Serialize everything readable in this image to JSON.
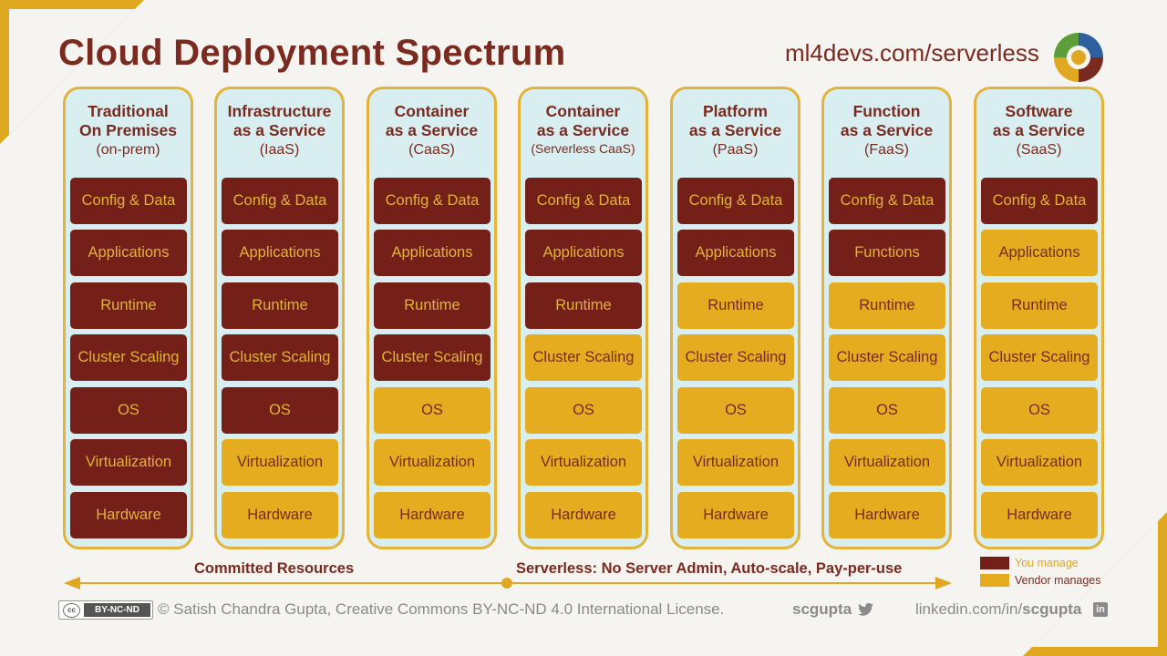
{
  "title": "Cloud Deployment Spectrum",
  "site": "ml4devs.com/serverless",
  "colors": {
    "you_manage": "#741f18",
    "vendor_manages": "#e4ac1e",
    "column_bg": "#d9eef0",
    "column_border": "#e4b43a",
    "accent": "#7a2a1f"
  },
  "columns": [
    {
      "line1": "Traditional",
      "line2": "On Premises",
      "line3": "(on-prem)",
      "cells": [
        {
          "label": "Config & Data",
          "owner": "you"
        },
        {
          "label": "Applications",
          "owner": "you"
        },
        {
          "label": "Runtime",
          "owner": "you"
        },
        {
          "label": "Cluster Scaling",
          "owner": "you"
        },
        {
          "label": "OS",
          "owner": "you"
        },
        {
          "label": "Virtualization",
          "owner": "you"
        },
        {
          "label": "Hardware",
          "owner": "you"
        }
      ]
    },
    {
      "line1": "Infrastructure",
      "line2": "as a Service",
      "line3": "(IaaS)",
      "cells": [
        {
          "label": "Config & Data",
          "owner": "you"
        },
        {
          "label": "Applications",
          "owner": "you"
        },
        {
          "label": "Runtime",
          "owner": "you"
        },
        {
          "label": "Cluster Scaling",
          "owner": "you"
        },
        {
          "label": "OS",
          "owner": "you"
        },
        {
          "label": "Virtualization",
          "owner": "vendor"
        },
        {
          "label": "Hardware",
          "owner": "vendor"
        }
      ]
    },
    {
      "line1": "Container",
      "line2": "as a Service",
      "line3": "(CaaS)",
      "cells": [
        {
          "label": "Config & Data",
          "owner": "you"
        },
        {
          "label": "Applications",
          "owner": "you"
        },
        {
          "label": "Runtime",
          "owner": "you"
        },
        {
          "label": "Cluster Scaling",
          "owner": "you"
        },
        {
          "label": "OS",
          "owner": "vendor"
        },
        {
          "label": "Virtualization",
          "owner": "vendor"
        },
        {
          "label": "Hardware",
          "owner": "vendor"
        }
      ]
    },
    {
      "line1": "Container",
      "line2": "as a Service",
      "line3": "(Serverless CaaS)",
      "cells": [
        {
          "label": "Config & Data",
          "owner": "you"
        },
        {
          "label": "Applications",
          "owner": "you"
        },
        {
          "label": "Runtime",
          "owner": "you"
        },
        {
          "label": "Cluster Scaling",
          "owner": "vendor"
        },
        {
          "label": "OS",
          "owner": "vendor"
        },
        {
          "label": "Virtualization",
          "owner": "vendor"
        },
        {
          "label": "Hardware",
          "owner": "vendor"
        }
      ]
    },
    {
      "line1": "Platform",
      "line2": "as a Service",
      "line3": "(PaaS)",
      "cells": [
        {
          "label": "Config & Data",
          "owner": "you"
        },
        {
          "label": "Applications",
          "owner": "you"
        },
        {
          "label": "Runtime",
          "owner": "vendor"
        },
        {
          "label": "Cluster Scaling",
          "owner": "vendor"
        },
        {
          "label": "OS",
          "owner": "vendor"
        },
        {
          "label": "Virtualization",
          "owner": "vendor"
        },
        {
          "label": "Hardware",
          "owner": "vendor"
        }
      ]
    },
    {
      "line1": "Function",
      "line2": "as a Service",
      "line3": "(FaaS)",
      "cells": [
        {
          "label": "Config & Data",
          "owner": "you"
        },
        {
          "label": "Functions",
          "owner": "you"
        },
        {
          "label": "Runtime",
          "owner": "vendor"
        },
        {
          "label": "Cluster Scaling",
          "owner": "vendor"
        },
        {
          "label": "OS",
          "owner": "vendor"
        },
        {
          "label": "Virtualization",
          "owner": "vendor"
        },
        {
          "label": "Hardware",
          "owner": "vendor"
        }
      ]
    },
    {
      "line1": "Software",
      "line2": "as a Service",
      "line3": "(SaaS)",
      "cells": [
        {
          "label": "Config & Data",
          "owner": "you"
        },
        {
          "label": "Applications",
          "owner": "vendor"
        },
        {
          "label": "Runtime",
          "owner": "vendor"
        },
        {
          "label": "Cluster Scaling",
          "owner": "vendor"
        },
        {
          "label": "OS",
          "owner": "vendor"
        },
        {
          "label": "Virtualization",
          "owner": "vendor"
        },
        {
          "label": "Hardware",
          "owner": "vendor"
        }
      ]
    }
  ],
  "spectrum": {
    "left_label": "Committed Resources",
    "right_label": "Serverless: No Server Admin, Auto-scale, Pay-per-use"
  },
  "legend": {
    "you": "You manage",
    "vendor": "Vendor manages"
  },
  "footer": {
    "cc_badge": "BY-NC-ND",
    "cc_mark": "cc",
    "copyright": "© Satish Chandra Gupta, Creative Commons BY-NC-ND 4.0 International License.",
    "handle": "scgupta",
    "linkedin_prefix": "linkedin.com/in/",
    "linkedin_handle": "scgupta",
    "linkedin_mark": "in"
  }
}
